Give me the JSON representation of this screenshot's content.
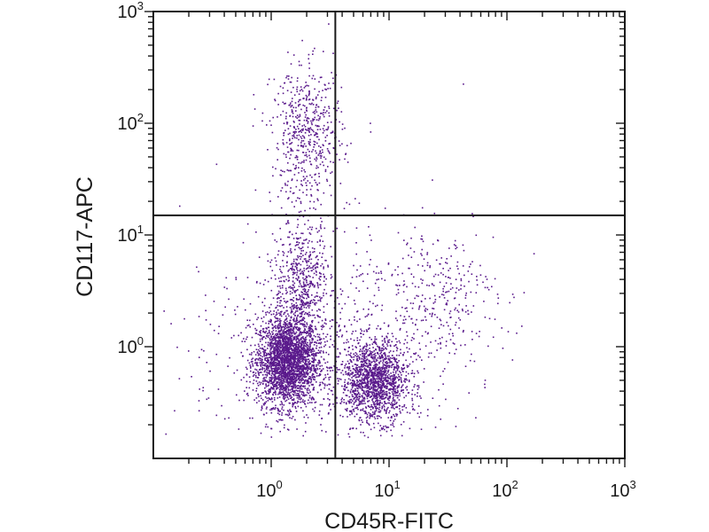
{
  "chart_data": {
    "type": "scatter",
    "title": "",
    "xlabel": "CD45R-FITC",
    "ylabel": "CD117-APC",
    "xscale": "log",
    "yscale": "log",
    "xlim": [
      0.1,
      1000
    ],
    "ylim": [
      0.1,
      1000
    ],
    "x_tick_labels": [
      {
        "base": "10",
        "exp": "0",
        "value": 1
      },
      {
        "base": "10",
        "exp": "1",
        "value": 10
      },
      {
        "base": "10",
        "exp": "2",
        "value": 100
      },
      {
        "base": "10",
        "exp": "3",
        "value": 1000
      }
    ],
    "y_tick_labels": [
      {
        "base": "10",
        "exp": "0",
        "value": 1
      },
      {
        "base": "10",
        "exp": "1",
        "value": 10
      },
      {
        "base": "10",
        "exp": "2",
        "value": 100
      },
      {
        "base": "10",
        "exp": "3",
        "value": 1000
      }
    ],
    "gates": {
      "x": 3.5,
      "y": 15
    },
    "grid": false,
    "point_color": "#5a1a8c",
    "axis_color": "#1a1a1a",
    "series": [
      {
        "clusters": [
          {
            "center_x": 1.35,
            "center_y": 0.75,
            "spread_x_decades": 0.13,
            "spread_y_decades": 0.2,
            "count": 2600
          },
          {
            "center_x": 7.5,
            "center_y": 0.5,
            "spread_x_decades": 0.14,
            "spread_y_decades": 0.18,
            "count": 1500
          },
          {
            "center_x": 1.8,
            "center_y": 3.5,
            "spread_x_decades": 0.12,
            "spread_y_decades": 0.3,
            "count": 600
          },
          {
            "center_x": 2.0,
            "center_y": 80,
            "spread_x_decades": 0.15,
            "spread_y_decades": 0.3,
            "count": 550
          },
          {
            "center_x": 25,
            "center_y": 3.0,
            "spread_x_decades": 0.25,
            "spread_y_decades": 0.3,
            "count": 260
          },
          {
            "center_x": 3.0,
            "center_y": 1.0,
            "spread_x_decades": 0.6,
            "spread_y_decades": 0.55,
            "count": 700
          }
        ]
      }
    ]
  }
}
